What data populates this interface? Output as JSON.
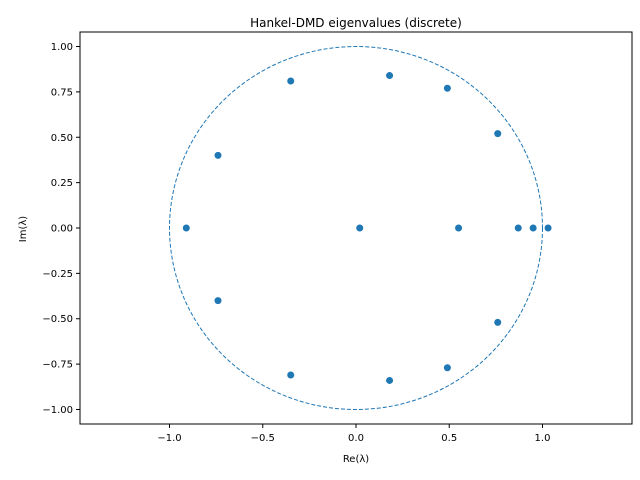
{
  "chart_data": {
    "type": "scatter",
    "title": "Hankel-DMD eigenvalues (discrete)",
    "xlabel": "Re(λ)",
    "ylabel": "Im(λ)",
    "xlim": [
      -1.48,
      1.48
    ],
    "ylim": [
      -1.08,
      1.08
    ],
    "xticks": [
      -1.0,
      -0.5,
      0.0,
      0.5,
      1.0
    ],
    "xtick_labels": [
      "−1.0",
      "−0.5",
      "0.0",
      "0.5",
      "1.0"
    ],
    "yticks": [
      -1.0,
      -0.75,
      -0.5,
      -0.25,
      0.0,
      0.25,
      0.5,
      0.75,
      1.0
    ],
    "ytick_labels": [
      "−1.00",
      "−0.75",
      "−0.50",
      "−0.25",
      "0.00",
      "0.25",
      "0.50",
      "0.75",
      "1.00"
    ],
    "grid": false,
    "unit_circle": {
      "center": [
        0,
        0
      ],
      "radius": 1.0,
      "style": "dashed"
    },
    "marker_color": "#1f77b4",
    "points": [
      {
        "x": 0.18,
        "y": 0.84
      },
      {
        "x": 0.49,
        "y": 0.77
      },
      {
        "x": -0.35,
        "y": 0.81
      },
      {
        "x": 0.76,
        "y": 0.52
      },
      {
        "x": -0.74,
        "y": 0.4
      },
      {
        "x": -0.91,
        "y": 0.0
      },
      {
        "x": 0.02,
        "y": 0.0
      },
      {
        "x": 0.55,
        "y": 0.0
      },
      {
        "x": 0.87,
        "y": 0.0
      },
      {
        "x": 0.95,
        "y": 0.0
      },
      {
        "x": 1.03,
        "y": 0.0
      },
      {
        "x": -0.74,
        "y": -0.4
      },
      {
        "x": 0.76,
        "y": -0.52
      },
      {
        "x": -0.35,
        "y": -0.81
      },
      {
        "x": 0.49,
        "y": -0.77
      },
      {
        "x": 0.18,
        "y": -0.84
      }
    ]
  }
}
